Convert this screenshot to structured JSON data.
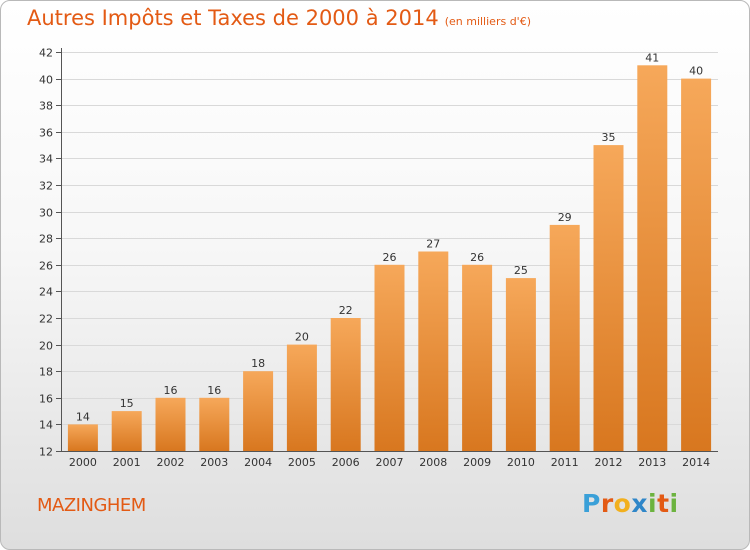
{
  "title": "Autres Impôts et Taxes de 2000 à 2014",
  "unit_note": "(en milliers d'€)",
  "commune": "MAZINGHEM",
  "logo": {
    "text": "Proxiti",
    "letters": [
      "P",
      "r",
      "o",
      "x",
      "i",
      "t",
      "i"
    ],
    "colors": [
      "#3aa0d8",
      "#e35a14",
      "#f2b01e",
      "#2f86c8",
      "#6cb33f",
      "#e35a14",
      "#6cb33f"
    ]
  },
  "colors": {
    "title": "#e35a14",
    "bar_top": "#f6a85a",
    "bar_bottom": "#d8771f",
    "grid": "#d9d9d9",
    "axis": "#555555"
  },
  "chart_data": {
    "type": "bar",
    "categories": [
      "2000",
      "2001",
      "2002",
      "2003",
      "2004",
      "2005",
      "2006",
      "2007",
      "2008",
      "2009",
      "2010",
      "2011",
      "2012",
      "2013",
      "2014"
    ],
    "values": [
      14,
      15,
      16,
      16,
      18,
      20,
      22,
      26,
      27,
      26,
      25,
      29,
      35,
      41,
      40
    ],
    "ylim": [
      12,
      42
    ],
    "yticks": [
      12,
      14,
      16,
      18,
      20,
      22,
      24,
      26,
      28,
      30,
      32,
      34,
      36,
      38,
      40,
      42
    ],
    "grid": true
  }
}
